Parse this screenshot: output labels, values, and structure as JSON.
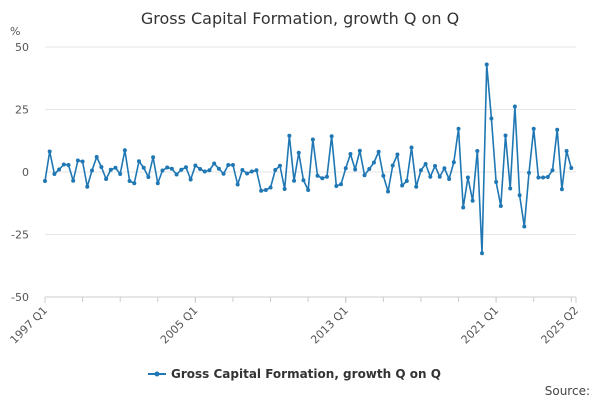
{
  "chart_data": {
    "type": "line",
    "title": "Gross Capital Formation, growth Q on Q",
    "y_unit_label": "%",
    "ylim": [
      -50,
      50
    ],
    "y_ticks": [
      50,
      25,
      0,
      -25,
      -50
    ],
    "x_tick_labels": [
      "1997 Q1",
      "2005 Q1",
      "2013 Q1",
      "2021 Q1",
      "2025 Q2"
    ],
    "grid": "horizontal",
    "legend_position": "bottom-center",
    "source_label": "Source:",
    "colors": {
      "line": "#1f77b4",
      "grid": "#e6e6e6",
      "axis": "#cccccc"
    },
    "series": [
      {
        "name": "Gross Capital Formation, growth Q on Q",
        "start_period": "1997 Q1",
        "end_period": "2025 Q2",
        "values": [
          -3.6,
          8.2,
          -0.8,
          1.0,
          3.0,
          2.8,
          -3.5,
          4.6,
          4.2,
          -5.9,
          0.6,
          6.0,
          2.0,
          -2.8,
          0.9,
          1.7,
          -0.8,
          8.7,
          -3.6,
          -4.5,
          4.3,
          1.7,
          -2.0,
          5.9,
          -4.5,
          0.6,
          1.8,
          1.3,
          -1.0,
          0.9,
          1.9,
          -3.0,
          2.6,
          1.2,
          0.2,
          0.7,
          3.4,
          1.3,
          -0.7,
          2.8,
          2.8,
          -5.0,
          0.8,
          -0.6,
          0.2,
          0.7,
          -7.5,
          -7.2,
          -6.2,
          0.8,
          2.5,
          -6.8,
          14.5,
          -3.5,
          7.7,
          -3.3,
          -7.2,
          13.0,
          -1.5,
          -2.5,
          -1.9,
          14.3,
          -5.6,
          -4.9,
          1.5,
          7.2,
          1.0,
          8.5,
          -1.3,
          1.2,
          3.8,
          8.1,
          -1.5,
          -7.8,
          2.6,
          7.0,
          -5.4,
          -3.6,
          9.8,
          -5.9,
          0.7,
          3.2,
          -1.9,
          2.4,
          -1.9,
          1.5,
          -2.8,
          3.9,
          17.3,
          -14.2,
          -2.2,
          -11.5,
          8.4,
          -32.5,
          43.0,
          21.4,
          -4.0,
          -13.6,
          14.6,
          -6.6,
          26.2,
          -9.3,
          -21.8,
          -0.3,
          17.3,
          -2.2,
          -2.2,
          -2.0,
          0.7,
          16.9,
          -6.9,
          8.4,
          1.6
        ]
      }
    ]
  }
}
